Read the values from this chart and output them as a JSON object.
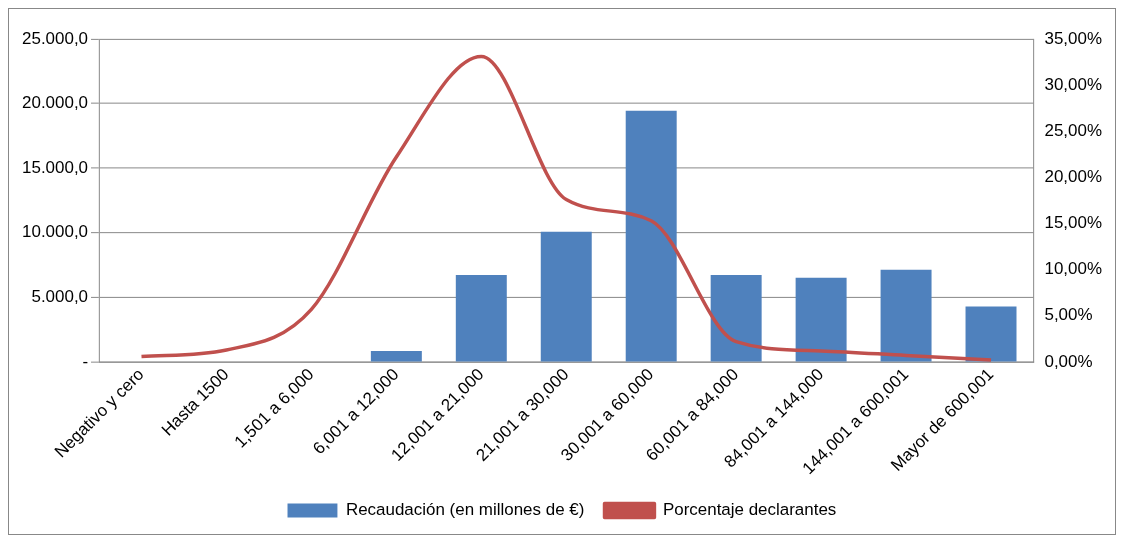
{
  "chart_data": {
    "type": "bar",
    "categories": [
      "Negativo y cero",
      "Hasta 1500",
      "1,501 a 6,000",
      "6,001 a 12,000",
      "12,001 a 21,000",
      "21,001 a 30,000",
      "30,001 a 60,000",
      "60,001 a 84,000",
      "84,001 a 144,000",
      "144,001 a 600,001",
      "Mayor de 600,001"
    ],
    "series": [
      {
        "name": "Recaudación (en millones de €)",
        "color": "#4f81bd",
        "values": [
          0,
          0,
          0,
          840,
          6720,
          10080,
          19430,
          6720,
          6510,
          7140,
          4300
        ]
      },
      {
        "name": "Porcentaje declarantes",
        "type": "line",
        "axis": "y2",
        "color": "#c0504d",
        "values": [
          0.6,
          1.3,
          5.7,
          22.2,
          33.1,
          17.6,
          15.3,
          2.2,
          1.2,
          0.7,
          0.2
        ]
      }
    ],
    "ylim": [
      0,
      25000
    ],
    "yticks": [
      {
        "value": 0,
        "label": "-"
      },
      {
        "value": 5000,
        "label": "5.000,0"
      },
      {
        "value": 10000,
        "label": "10.000,0"
      },
      {
        "value": 15000,
        "label": "15.000,0"
      },
      {
        "value": 20000,
        "label": "20.000,0"
      },
      {
        "value": 25000,
        "label": "25.000,0"
      }
    ],
    "y2lim": [
      0,
      35
    ],
    "y2ticks": [
      {
        "value": 0,
        "label": "0,00%"
      },
      {
        "value": 5,
        "label": "5,00%"
      },
      {
        "value": 10,
        "label": "10,00%"
      },
      {
        "value": 15,
        "label": "15,00%"
      },
      {
        "value": 20,
        "label": "20,00%"
      },
      {
        "value": 25,
        "label": "25,00%"
      },
      {
        "value": 30,
        "label": "30,00%"
      },
      {
        "value": 35,
        "label": "35,00%"
      }
    ],
    "grid": "y",
    "legend": "bottom",
    "marker": "none"
  }
}
